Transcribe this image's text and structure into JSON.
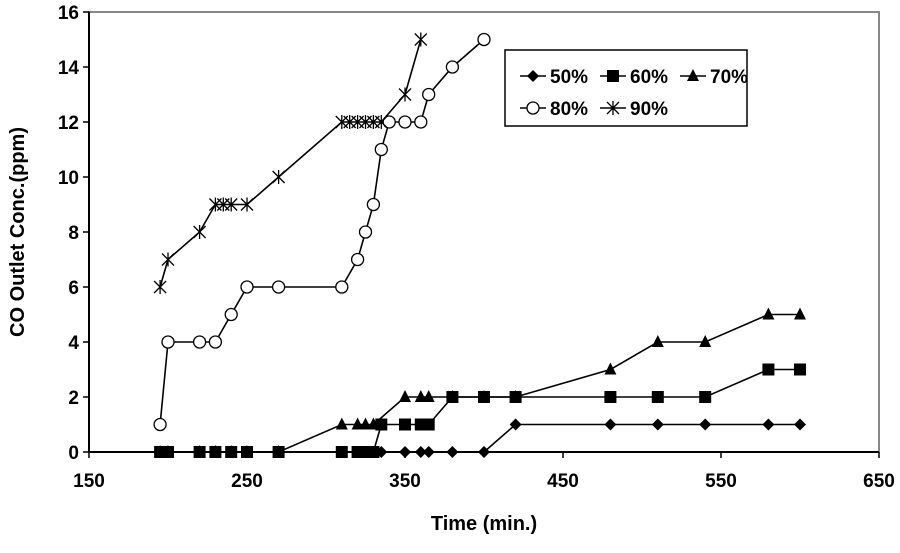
{
  "chart_data": {
    "type": "line",
    "title": "",
    "xlabel": "Time (min.)",
    "ylabel": "CO Outlet Conc.(ppm)",
    "xlim": [
      150,
      650
    ],
    "ylim": [
      0,
      16
    ],
    "xticks": [
      150,
      250,
      350,
      450,
      550,
      650
    ],
    "yticks": [
      0,
      2,
      4,
      6,
      8,
      10,
      12,
      14,
      16
    ],
    "grid": false,
    "legend_placement": "top-right",
    "series": [
      {
        "name": "50%",
        "marker": "diamond",
        "x": [
          195,
          200,
          220,
          230,
          240,
          250,
          270,
          310,
          320,
          325,
          330,
          335,
          350,
          360,
          365,
          380,
          400,
          420,
          480,
          510,
          540,
          580,
          600
        ],
        "y": [
          0,
          0,
          0,
          0,
          0,
          0,
          0,
          0,
          0,
          0,
          0,
          0,
          0,
          0,
          0,
          0,
          0,
          1,
          1,
          1,
          1,
          1,
          1
        ]
      },
      {
        "name": "60%",
        "marker": "square",
        "x": [
          195,
          200,
          220,
          230,
          240,
          250,
          270,
          310,
          320,
          325,
          330,
          335,
          350,
          360,
          365,
          380,
          400,
          420,
          480,
          510,
          540,
          580,
          600
        ],
        "y": [
          0,
          0,
          0,
          0,
          0,
          0,
          0,
          0,
          0,
          0,
          0,
          1,
          1,
          1,
          1,
          2,
          2,
          2,
          2,
          2,
          2,
          3,
          3
        ]
      },
      {
        "name": "70%",
        "marker": "triangle",
        "x": [
          195,
          200,
          220,
          230,
          240,
          250,
          270,
          310,
          320,
          325,
          330,
          350,
          360,
          365,
          380,
          400,
          420,
          480,
          510,
          540,
          580,
          600
        ],
        "y": [
          0,
          0,
          0,
          0,
          0,
          0,
          0,
          1,
          1,
          1,
          1,
          2,
          2,
          2,
          2,
          2,
          2,
          3,
          4,
          4,
          5,
          5
        ]
      },
      {
        "name": "80%",
        "marker": "circle-open",
        "x": [
          195,
          200,
          220,
          230,
          240,
          250,
          270,
          310,
          320,
          325,
          330,
          335,
          340,
          350,
          360,
          365,
          380,
          400
        ],
        "y": [
          1,
          4,
          4,
          4,
          5,
          6,
          6,
          6,
          7,
          8,
          9,
          11,
          12,
          12,
          12,
          13,
          14,
          15
        ]
      },
      {
        "name": "90%",
        "marker": "star",
        "x": [
          195,
          200,
          220,
          230,
          235,
          240,
          250,
          270,
          310,
          315,
          320,
          325,
          330,
          335,
          350,
          360
        ],
        "y": [
          6,
          7,
          8,
          9,
          9,
          9,
          9,
          10,
          12,
          12,
          12,
          12,
          12,
          12,
          13,
          15
        ]
      }
    ]
  }
}
